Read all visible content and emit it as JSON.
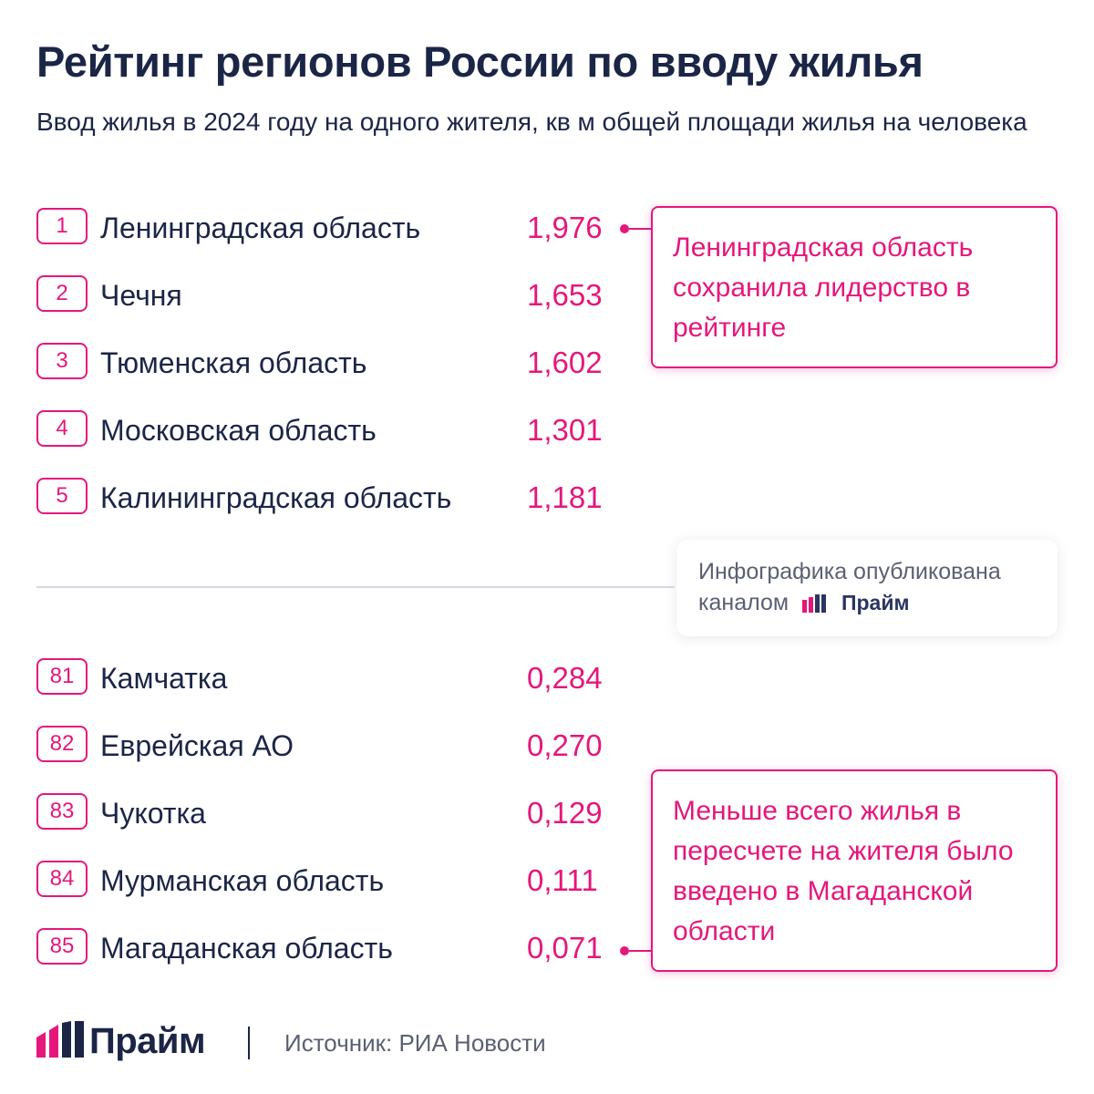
{
  "title": "Рейтинг регионов России по вводу жилья",
  "subtitle": "Ввод жилья в 2024 году на одного жителя, кв м общей площади жилья на человека",
  "chart_data": {
    "type": "table",
    "title": "Рейтинг регионов России по вводу жилья",
    "unit": "кв м общей площади жилья на человека",
    "top": [
      {
        "rank": "1",
        "region": "Ленинградская область",
        "value": "1,976"
      },
      {
        "rank": "2",
        "region": "Чечня",
        "value": "1,653"
      },
      {
        "rank": "3",
        "region": "Тюменская область",
        "value": "1,602"
      },
      {
        "rank": "4",
        "region": "Московская область",
        "value": "1,301"
      },
      {
        "rank": "5",
        "region": "Калининградская область",
        "value": "1,181"
      }
    ],
    "bottom": [
      {
        "rank": "81",
        "region": "Камчатка",
        "value": "0,284"
      },
      {
        "rank": "82",
        "region": "Еврейская АО",
        "value": "0,270"
      },
      {
        "rank": "83",
        "region": "Чукотка",
        "value": "0,129"
      },
      {
        "rank": "84",
        "region": "Мурманская область",
        "value": "0,111"
      },
      {
        "rank": "85",
        "region": "Магаданская область",
        "value": "0,071"
      }
    ]
  },
  "callouts": {
    "top": "Ленинградская область сохранила лидерство в рейтинге",
    "bottom": "Меньше всего жилья в пересчете на жителя было введено в Магаданской области"
  },
  "published": {
    "line1": "Инфографика опубликована",
    "line2": "каналом",
    "brand": "Прайм"
  },
  "footer": {
    "brand": "Прайм",
    "source": "Источник: РИА Новости"
  },
  "colors": {
    "accent": "#e5177b",
    "text": "#1b2546",
    "muted": "#5b6072"
  }
}
